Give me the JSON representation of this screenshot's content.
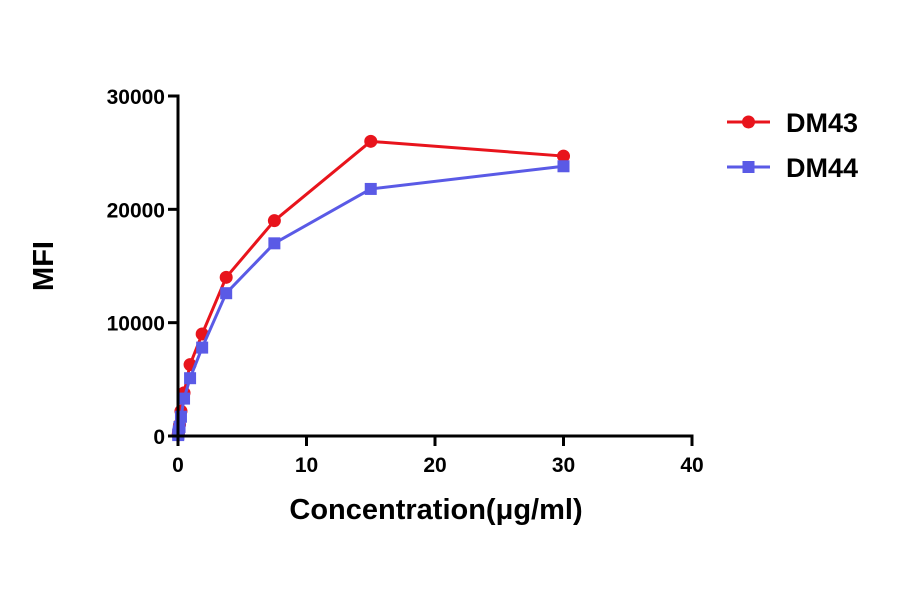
{
  "chart_data": {
    "type": "line",
    "title": "",
    "xlabel": "Concentration(μg/ml)",
    "ylabel": "MFI",
    "xlim": [
      0,
      40
    ],
    "ylim": [
      0,
      30000
    ],
    "xticks": [
      0,
      10,
      20,
      30,
      40
    ],
    "yticks": [
      0,
      10000,
      20000,
      30000
    ],
    "xtick_labels": [
      "0",
      "10",
      "20",
      "30",
      "40"
    ],
    "ytick_labels": [
      "0",
      "10000",
      "20000",
      "30000"
    ],
    "grid": false,
    "legend": "top-right",
    "series": [
      {
        "name": "DM43",
        "color": "#e8141c",
        "marker": "circle",
        "x": [
          0.015,
          0.03,
          0.06,
          0.12,
          0.23,
          0.47,
          0.94,
          1.88,
          3.75,
          7.5,
          15,
          30
        ],
        "y": [
          100,
          250,
          500,
          1000,
          2200,
          3800,
          6300,
          9000,
          14000,
          19000,
          26000,
          24700
        ]
      },
      {
        "name": "DM44",
        "color": "#5a5ae6",
        "marker": "square",
        "x": [
          0.015,
          0.03,
          0.06,
          0.12,
          0.23,
          0.47,
          0.94,
          1.88,
          3.75,
          7.5,
          15,
          30
        ],
        "y": [
          80,
          200,
          400,
          800,
          1700,
          3300,
          5100,
          7800,
          12600,
          17000,
          21800,
          23800
        ]
      }
    ]
  }
}
